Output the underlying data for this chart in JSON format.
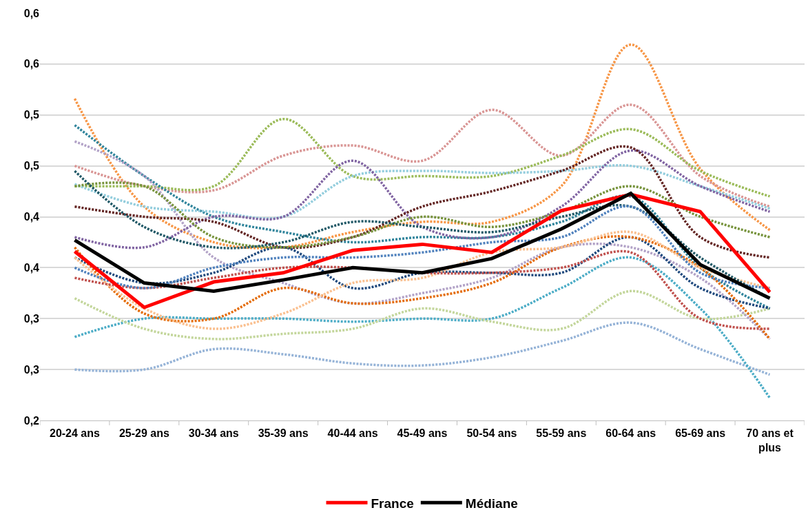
{
  "chart_data": {
    "type": "line",
    "categories": [
      "20-24 ans",
      "25-29 ans",
      "30-34 ans",
      "35-39 ans",
      "40-44 ans",
      "45-49 ans",
      "50-54 ans",
      "55-59 ans",
      "60-64 ans",
      "65-69 ans",
      "70 ans et plus"
    ],
    "ylim": [
      0.2,
      0.6
    ],
    "yticks": [
      {
        "value": 0.2,
        "label": "0,2"
      },
      {
        "value": 0.25,
        "label": "0,3"
      },
      {
        "value": 0.3,
        "label": "0,3"
      },
      {
        "value": 0.35,
        "label": "0,4"
      },
      {
        "value": 0.4,
        "label": "0,4"
      },
      {
        "value": 0.45,
        "label": "0,5"
      },
      {
        "value": 0.5,
        "label": "0,5"
      },
      {
        "value": 0.55,
        "label": "0,6"
      },
      {
        "value": 0.6,
        "label": "0,6"
      }
    ],
    "grid": "y",
    "legend": "bottom",
    "marker": "none",
    "series": [
      {
        "color": "#f79646",
        "line_style": "dotted",
        "values": [
          0.516,
          0.41,
          0.375,
          0.37,
          0.385,
          0.395,
          0.395,
          0.43,
          0.569,
          0.447,
          0.387
        ]
      },
      {
        "color": "#d99594",
        "line_style": "dotted",
        "values": [
          0.45,
          0.43,
          0.426,
          0.46,
          0.47,
          0.455,
          0.505,
          0.46,
          0.51,
          0.44,
          0.41
        ]
      },
      {
        "color": "#9bbb59",
        "line_style": "dotted",
        "values": [
          0.43,
          0.43,
          0.43,
          0.496,
          0.44,
          0.44,
          0.44,
          0.46,
          0.486,
          0.445,
          0.42
        ]
      },
      {
        "color": "#95b3d7",
        "line_style": "dotted",
        "values": [
          0.25,
          0.25,
          0.27,
          0.265,
          0.256,
          0.254,
          0.262,
          0.278,
          0.296,
          0.27,
          0.245
        ]
      },
      {
        "color": "#4bacc6",
        "line_style": "dotted",
        "values": [
          0.282,
          0.3,
          0.3,
          0.3,
          0.297,
          0.3,
          0.3,
          0.33,
          0.36,
          0.31,
          0.222
        ]
      },
      {
        "color": "#c3d69b",
        "line_style": "dotted",
        "values": [
          0.32,
          0.29,
          0.28,
          0.285,
          0.29,
          0.31,
          0.297,
          0.29,
          0.327,
          0.3,
          0.31
        ]
      },
      {
        "color": "#31859c",
        "line_style": "dotted",
        "values": [
          0.49,
          0.44,
          0.4,
          0.385,
          0.375,
          0.38,
          0.38,
          0.395,
          0.42,
          0.35,
          0.31
        ]
      },
      {
        "color": "#b2a2c7",
        "line_style": "dotted",
        "values": [
          0.474,
          0.44,
          0.36,
          0.335,
          0.315,
          0.325,
          0.34,
          0.37,
          0.37,
          0.34,
          0.28
        ]
      },
      {
        "color": "#93cddd",
        "line_style": "dotted",
        "values": [
          0.432,
          0.41,
          0.405,
          0.4,
          0.44,
          0.445,
          0.443,
          0.445,
          0.45,
          0.43,
          0.408
        ]
      },
      {
        "color": "#8064a2",
        "line_style": "dotted",
        "values": [
          0.38,
          0.37,
          0.4,
          0.4,
          0.455,
          0.39,
          0.38,
          0.41,
          0.465,
          0.43,
          0.405
        ]
      },
      {
        "color": "#632523",
        "line_style": "dotted",
        "values": [
          0.41,
          0.4,
          0.395,
          0.37,
          0.38,
          0.41,
          0.425,
          0.445,
          0.468,
          0.38,
          0.36
        ]
      },
      {
        "color": "#1f497d",
        "line_style": "dotted",
        "values": [
          0.36,
          0.335,
          0.345,
          0.37,
          0.33,
          0.345,
          0.345,
          0.345,
          0.38,
          0.33,
          0.31
        ]
      },
      {
        "color": "#e46c0a",
        "line_style": "dotted",
        "values": [
          0.37,
          0.305,
          0.3,
          0.33,
          0.315,
          0.32,
          0.335,
          0.37,
          0.38,
          0.35,
          0.28
        ]
      },
      {
        "color": "#fac090",
        "line_style": "dotted",
        "values": [
          0.36,
          0.31,
          0.29,
          0.305,
          0.335,
          0.34,
          0.365,
          0.37,
          0.385,
          0.35,
          0.33
        ]
      },
      {
        "color": "#c0504d",
        "line_style": "dotted",
        "values": [
          0.34,
          0.33,
          0.34,
          0.35,
          0.35,
          0.345,
          0.345,
          0.35,
          0.365,
          0.3,
          0.29
        ]
      },
      {
        "color": "#77933c",
        "line_style": "dotted",
        "values": [
          0.43,
          0.43,
          0.38,
          0.37,
          0.38,
          0.4,
          0.39,
          0.405,
          0.43,
          0.4,
          0.38
        ]
      },
      {
        "color": "#215967",
        "line_style": "dotted",
        "values": [
          0.445,
          0.39,
          0.37,
          0.375,
          0.395,
          0.39,
          0.385,
          0.4,
          0.41,
          0.36,
          0.32
        ]
      },
      {
        "color": "#4f81bd",
        "line_style": "dotted",
        "values": [
          0.35,
          0.33,
          0.35,
          0.36,
          0.36,
          0.365,
          0.375,
          0.38,
          0.41,
          0.345,
          0.33
        ]
      },
      {
        "name": "France",
        "color": "#ff0000",
        "line_style": "solid",
        "values": [
          0.366,
          0.311,
          0.336,
          0.345,
          0.367,
          0.373,
          0.365,
          0.406,
          0.422,
          0.405,
          0.326
        ]
      },
      {
        "name": "Médiane",
        "color": "#000000",
        "line_style": "solid",
        "values": [
          0.377,
          0.335,
          0.327,
          0.338,
          0.35,
          0.345,
          0.359,
          0.388,
          0.423,
          0.353,
          0.32
        ]
      }
    ]
  }
}
